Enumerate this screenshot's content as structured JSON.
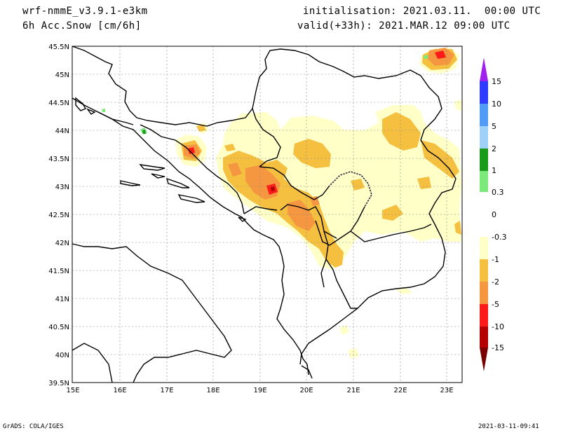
{
  "header": {
    "model": "wrf-nmmE_v3.9.1-e3km",
    "field": "6h Acc.Snow [cm/6h]",
    "init": "initialisation: 2021.03.11.  00:00 UTC",
    "valid": "valid(+33h): 2021.MAR.12 09:00 UTC"
  },
  "axes": {
    "lat_labels": [
      "45.5N",
      "45N",
      "44.5N",
      "44N",
      "43.5N",
      "43N",
      "42.5N",
      "42N",
      "41.5N",
      "41N",
      "40.5N",
      "40N",
      "39.5N"
    ],
    "lon_labels": [
      "15E",
      "16E",
      "17E",
      "18E",
      "19E",
      "20E",
      "21E",
      "22E",
      "23E"
    ],
    "lat_range": [
      39.5,
      45.5
    ],
    "lon_range": [
      15.0,
      23.3
    ],
    "grid": "dotted"
  },
  "colorbar": {
    "labels": [
      "15",
      "10",
      "5",
      "2",
      "1",
      "0.3",
      "0",
      "-0.3",
      "-1",
      "-2",
      "-5",
      "-10",
      "-15"
    ],
    "colors": [
      "#a020f0",
      "#2e3cff",
      "#4f9bf5",
      "#9fd0f8",
      "#1a9a1a",
      "#7bea7b",
      "#ffffff",
      "#ffffc8",
      "#f5c040",
      "#f59640",
      "#ff1a1a",
      "#b40000",
      "#7a0000"
    ]
  },
  "footer": {
    "left": "GrADS: COLA/IGES",
    "right": "2021-03-11-09:41"
  }
}
